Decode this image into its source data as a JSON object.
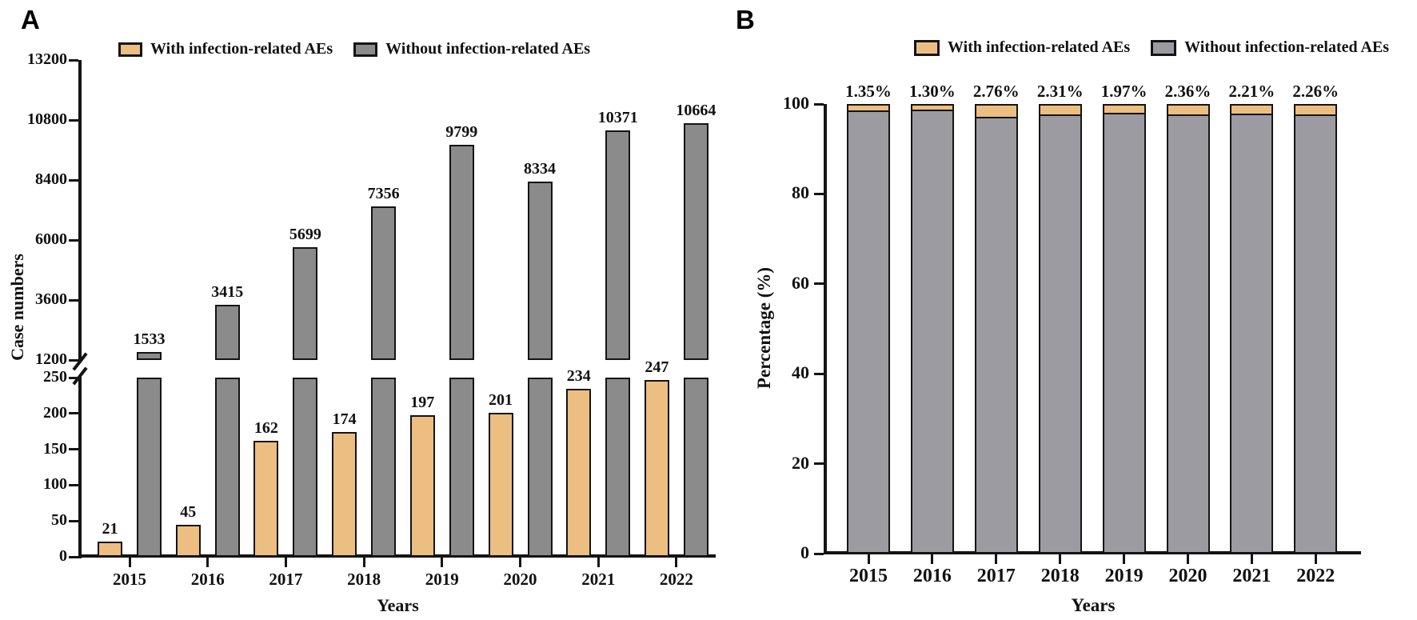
{
  "panels": {
    "a": {
      "letter": "A"
    },
    "b": {
      "letter": "B"
    }
  },
  "legend": {
    "with_label": "With infection-related AEs",
    "without_label": "Without infection-related AEs"
  },
  "colors": {
    "with_fill": "#ECBE82",
    "without_fill_a": "#8B8B8B",
    "without_fill_b": "#9C9BA2",
    "outline": "#141414"
  },
  "chart_data": [
    {
      "panel": "A",
      "type": "bar",
      "categories": [
        "2015",
        "2016",
        "2017",
        "2018",
        "2019",
        "2020",
        "2021",
        "2022"
      ],
      "series": [
        {
          "name": "With infection-related AEs",
          "values": [
            21,
            45,
            162,
            174,
            197,
            201,
            234,
            247
          ]
        },
        {
          "name": "Without infection-related AEs",
          "values": [
            1533,
            3415,
            5699,
            7356,
            9799,
            8334,
            10371,
            10664
          ]
        }
      ],
      "bar_value_labels": true,
      "ylabel": "Case numbers",
      "xlabel": "Years",
      "y_axis_break": {
        "lower_range": [
          0,
          250
        ],
        "lower_ticks": [
          0,
          50,
          100,
          150,
          200,
          250
        ],
        "upper_range": [
          1200,
          13200
        ],
        "upper_ticks": [
          1200,
          3600,
          6000,
          8400,
          10800,
          13200
        ]
      },
      "legend_position": "top"
    },
    {
      "panel": "B",
      "type": "stacked_bar_percent",
      "categories": [
        "2015",
        "2016",
        "2017",
        "2018",
        "2019",
        "2020",
        "2021",
        "2022"
      ],
      "series": [
        {
          "name": "With infection-related AEs",
          "values": [
            1.35,
            1.3,
            2.76,
            2.31,
            1.97,
            2.36,
            2.21,
            2.26
          ]
        },
        {
          "name": "Without infection-related AEs",
          "values": [
            98.65,
            98.7,
            97.24,
            97.69,
            98.03,
            97.64,
            97.79,
            97.74
          ]
        }
      ],
      "bar_labels": [
        "1.35%",
        "1.30%",
        "2.76%",
        "2.31%",
        "1.97%",
        "2.36%",
        "2.21%",
        "2.26%"
      ],
      "ylabel": "Percentage (%)",
      "xlabel": "Years",
      "ylim": [
        0,
        100
      ],
      "yticks": [
        0,
        20,
        40,
        60,
        80,
        100
      ],
      "legend_position": "top"
    }
  ]
}
